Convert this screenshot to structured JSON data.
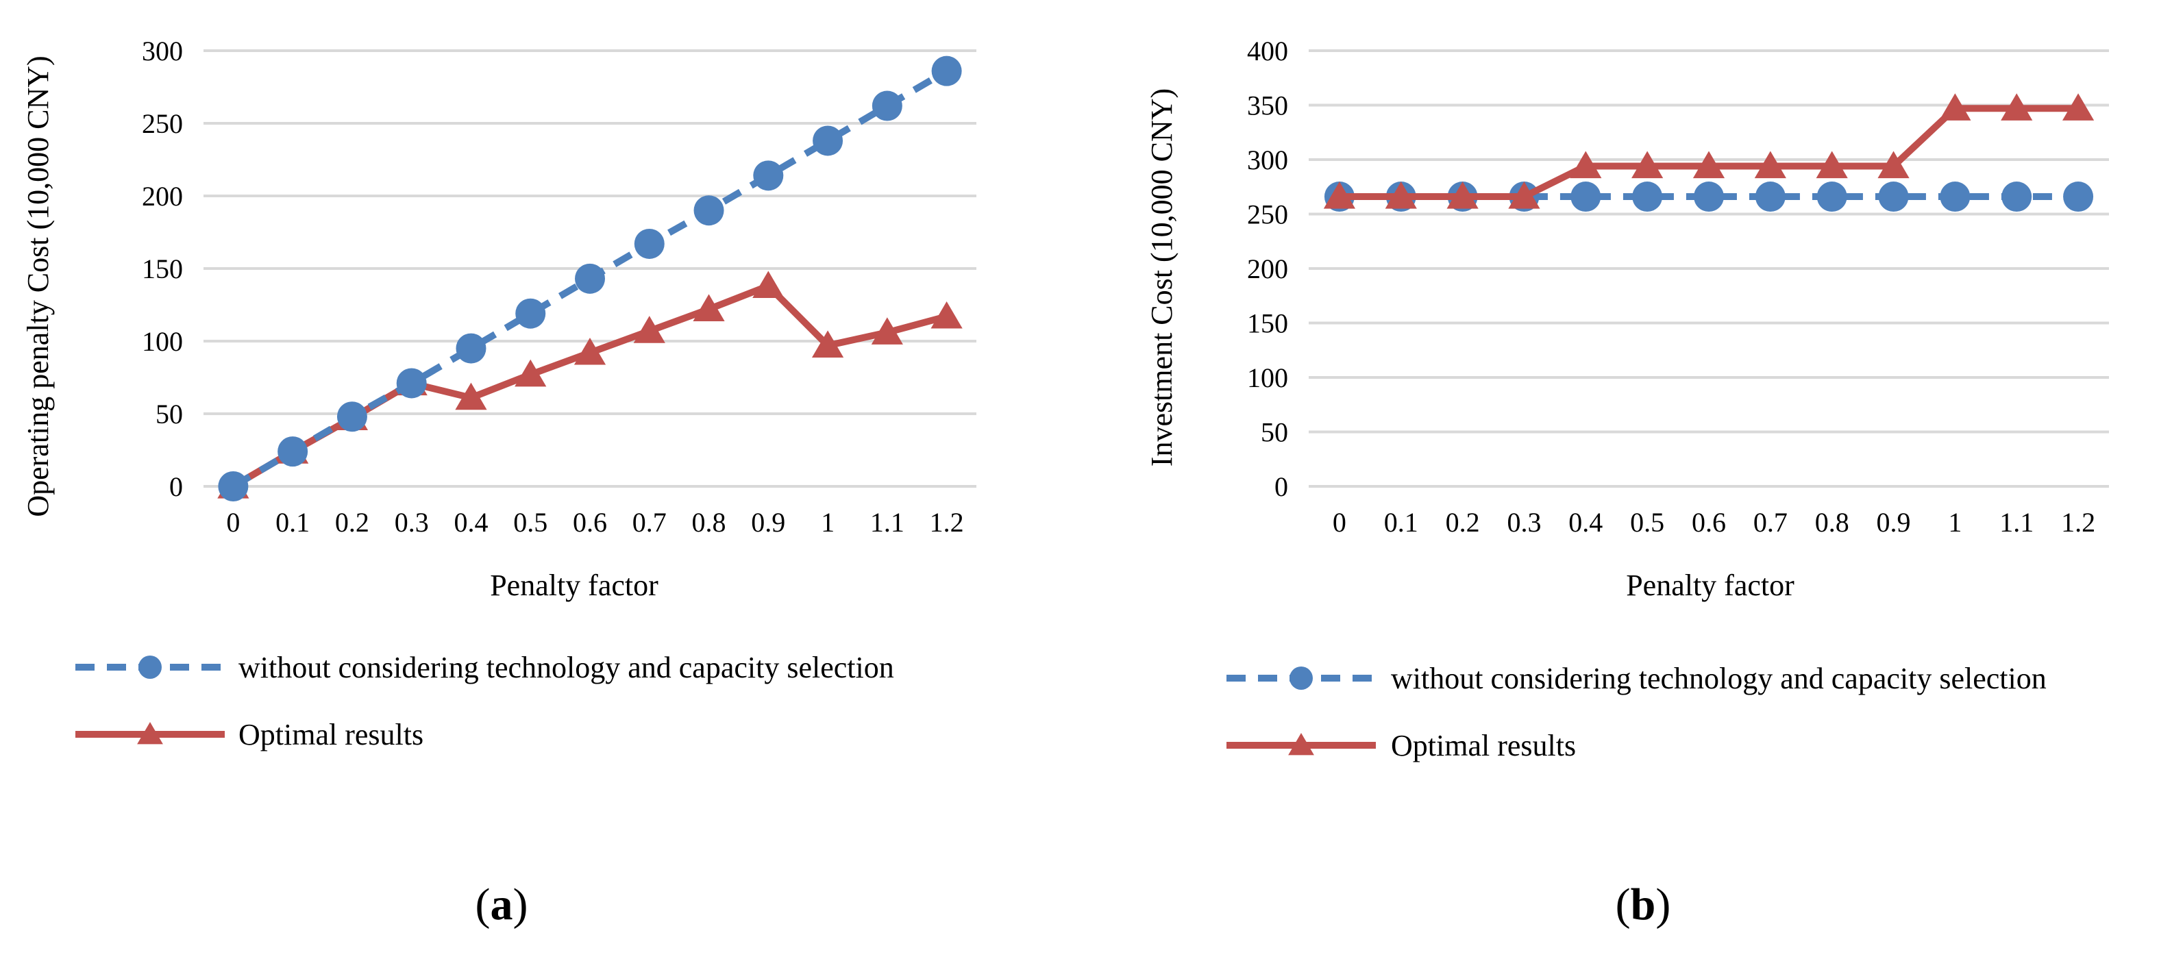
{
  "chart_data": [
    {
      "type": "line",
      "panel": "a",
      "x": [
        "0",
        "0.1",
        "0.2",
        "0.3",
        "0.4",
        "0.5",
        "0.6",
        "0.7",
        "0.8",
        "0.9",
        "1",
        "1.1",
        "1.2"
      ],
      "series": [
        {
          "name": "without considering technology and capacity selection",
          "marker": "circle",
          "style": "dashed",
          "color": "#4e81bd",
          "values": [
            0,
            24,
            48,
            71,
            95,
            119,
            143,
            167,
            190,
            214,
            238,
            262,
            286
          ]
        },
        {
          "name": "Optimal results",
          "marker": "triangle",
          "style": "solid",
          "color": "#c0504d",
          "values": [
            0,
            24,
            47,
            71,
            61,
            77,
            92,
            107,
            122,
            138,
            97,
            106,
            117
          ]
        }
      ],
      "xlabel": "Penalty factor",
      "ylabel": "Operating penalty Cost (10,000 CNY)",
      "ylim": [
        0,
        300
      ],
      "yticks": [
        "0",
        "50",
        "100",
        "150",
        "200",
        "250",
        "300"
      ],
      "grid": true,
      "legend": "bottom"
    },
    {
      "type": "line",
      "panel": "b",
      "x": [
        "0",
        "0.1",
        "0.2",
        "0.3",
        "0.4",
        "0.5",
        "0.6",
        "0.7",
        "0.8",
        "0.9",
        "1",
        "1.1",
        "1.2"
      ],
      "series": [
        {
          "name": "without considering technology and capacity selection",
          "marker": "circle",
          "style": "dashed",
          "color": "#4e81bd",
          "values": [
            266,
            266,
            266,
            266,
            266,
            266,
            266,
            266,
            266,
            266,
            266,
            266,
            266
          ]
        },
        {
          "name": "Optimal results",
          "marker": "triangle",
          "style": "solid",
          "color": "#c0504d",
          "values": [
            266,
            266,
            266,
            266,
            294,
            294,
            294,
            294,
            294,
            294,
            347,
            347,
            347
          ]
        }
      ],
      "xlabel": "Penalty factor",
      "ylabel": "Investment Cost (10,000 CNY)",
      "ylim": [
        0,
        400
      ],
      "yticks": [
        "0",
        "50",
        "100",
        "150",
        "200",
        "250",
        "300",
        "350",
        "400"
      ],
      "grid": true,
      "legend": "bottom"
    }
  ],
  "labels": {
    "panel_a_open": "(",
    "panel_a_letter": "a",
    "panel_a_close": ")",
    "panel_b_open": "(",
    "panel_b_letter": "b",
    "panel_b_close": ")"
  }
}
